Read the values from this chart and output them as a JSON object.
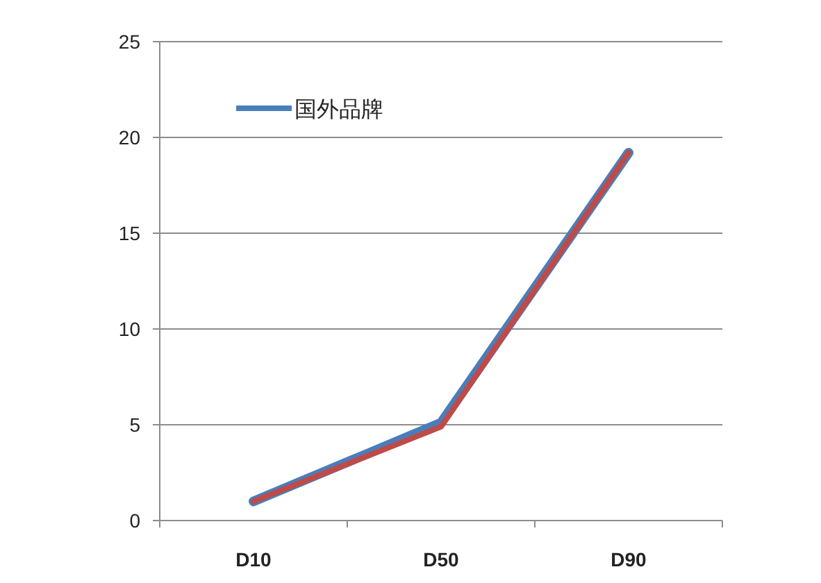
{
  "chart_data": {
    "type": "line",
    "categories": [
      "D10",
      "D50",
      "D90"
    ],
    "series": [
      {
        "name": "国外品牌",
        "color": "#4a7ebb",
        "values": [
          1,
          5.1,
          19.2
        ]
      },
      {
        "color": "#be4b48",
        "values": [
          1,
          4.9,
          19.2
        ]
      }
    ],
    "ylim": [
      0,
      25
    ],
    "yticks": [
      0,
      5,
      10,
      15,
      20,
      25
    ],
    "grid": "y",
    "legend": "top left",
    "marker": "none"
  }
}
